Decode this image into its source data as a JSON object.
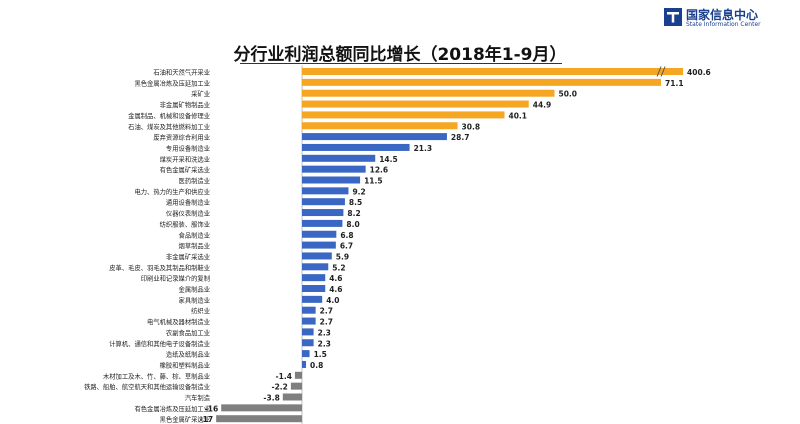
{
  "header": {
    "title": "分行业利润总额同比增长（2018年1-9月）",
    "logo_cn": "国家信息中心",
    "logo_en": "State Information Center"
  },
  "colors": {
    "positive_top": "#F5A623",
    "positive": "#3A67C3",
    "negative": "#7F7F7F",
    "axis": "#BFBFBF",
    "logo": "#1A3F8F"
  },
  "chart_data": {
    "type": "bar",
    "orientation": "horizontal",
    "title": "分行业利润总额同比增长（2018年1-9月）",
    "axis_break_after": 71.1,
    "categories": [
      "石油和天然气开采业",
      "黑色金属冶炼及压延加工业",
      "采矿业",
      "非金属矿物制品业",
      "金属制品、机械和设备修理业",
      "石油、煤炭及其他燃料加工业",
      "废弃资源综合利用业",
      "专用设备制造业",
      "煤炭开采和洗选业",
      "有色金属矿采选业",
      "医药制造业",
      "电力、热力的生产和供应业",
      "通用设备制造业",
      "仪器仪表制造业",
      "纺织服装、服饰业",
      "食品制造业",
      "烟草制品业",
      "非金属矿采选业",
      "皮革、毛皮、羽毛及其制品和制鞋业",
      "印刷业和记录媒介的复制",
      "金属制品业",
      "家具制造业",
      "纺织业",
      "电气机械及器材制造业",
      "农副食品加工业",
      "计算机、通信和其他电子设备制造业",
      "造纸及纸制品业",
      "橡胶和塑料制品业",
      "木材加工及木、竹、藤、棕、草制品业",
      "铁路、船舶、航空航天和其他运输设备制造业",
      "汽车制造",
      "有色金属冶炼及压延加工业",
      "黑色金属矿采选业"
    ],
    "values": [
      400.6,
      71.1,
      50.0,
      44.9,
      40.1,
      30.8,
      28.7,
      21.3,
      14.5,
      12.6,
      11.5,
      9.2,
      8.5,
      8.2,
      8.0,
      6.8,
      6.7,
      5.9,
      5.2,
      4.6,
      4.6,
      4.0,
      2.7,
      2.7,
      2.3,
      2.3,
      1.5,
      0.8,
      -1.4,
      -2.2,
      -3.8,
      -16,
      -17
    ],
    "labels": [
      "400.6",
      "71.1",
      "50.0",
      "44.9",
      "40.1",
      "30.8",
      "28.7",
      "21.3",
      "14.5",
      "12.6",
      "11.5",
      "9.2",
      "8.5",
      "8.2",
      "8.0",
      "6.8",
      "6.7",
      "5.9",
      "5.2",
      "4.6",
      "4.6",
      "4.0",
      "2.7",
      "2.7",
      "2.3",
      "2.3",
      "1.5",
      "0.8",
      "-1.4",
      "-2.2",
      "-3.8",
      "-16",
      "-17"
    ],
    "highlight_count": 6,
    "grid": false,
    "legend": "none"
  }
}
